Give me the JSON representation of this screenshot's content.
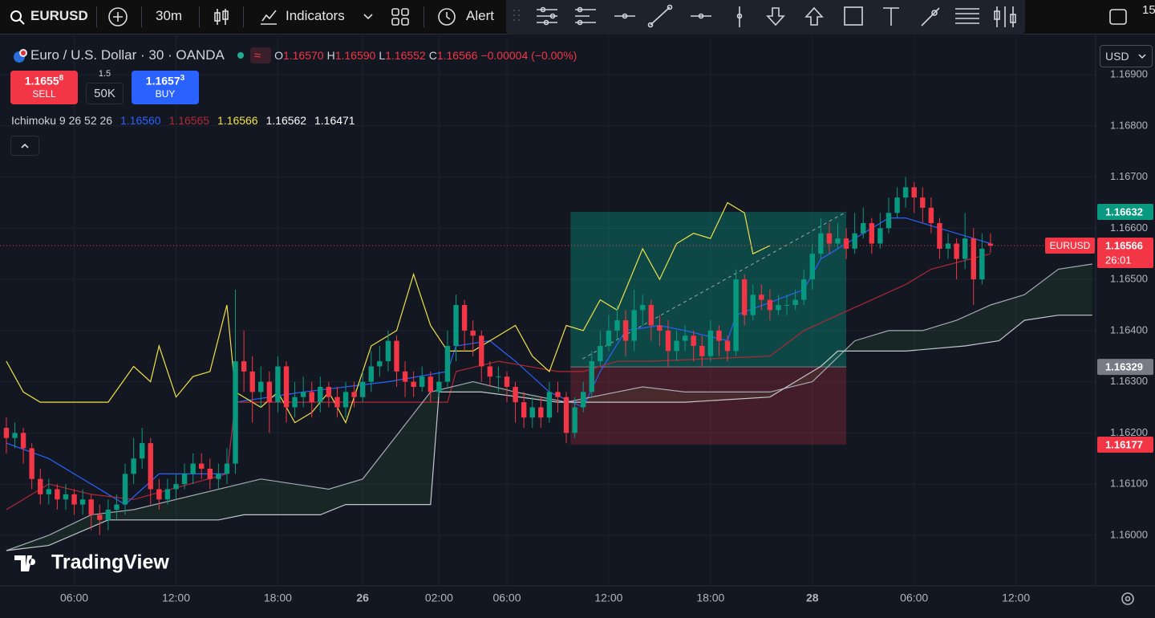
{
  "toolbar": {
    "symbol": "EURUSD",
    "interval": "30m",
    "indicators": "Indicators",
    "alert": "Alert",
    "clock": "15"
  },
  "legend": {
    "title": "Euro / U.S. Dollar · 30 · OANDA",
    "approx": "≈",
    "ohlc": [
      {
        "k": "O",
        "v": "1.16570"
      },
      {
        "k": "H",
        "v": "1.16590"
      },
      {
        "k": "L",
        "v": "1.16552"
      },
      {
        "k": "C",
        "v": "1.16566"
      }
    ],
    "change": "−0.00004 (−0.00%)"
  },
  "trade": {
    "sell": {
      "price": "1.1655",
      "pip": "8",
      "label": "SELL"
    },
    "spread": "1.5",
    "qty": "50K",
    "buy": {
      "price": "1.1657",
      "pip": "3",
      "label": "BUY"
    }
  },
  "indicator": {
    "name": "Ichimoku 9 26 52 26",
    "values": [
      "1.16560",
      "1.16565",
      "1.16566",
      "1.16562",
      "1.16471"
    ]
  },
  "currency": "USD",
  "brand": "TradingView",
  "chart_data": {
    "type": "candlestick",
    "xlim": [
      -0.75,
      128.3
    ],
    "ylim": [
      1.15901,
      1.16977
    ],
    "grid": true,
    "up_color": "#089981",
    "down_color": "#f23645",
    "xticks": [
      {
        "value": 8,
        "label": "06:00"
      },
      {
        "value": 20,
        "label": "12:00"
      },
      {
        "value": 32,
        "label": "18:00"
      },
      {
        "value": 42,
        "label": "26"
      },
      {
        "value": 51,
        "label": "02:00"
      },
      {
        "value": 59,
        "label": "06:00"
      },
      {
        "value": 71,
        "label": "12:00"
      },
      {
        "value": 83,
        "label": "18:00"
      },
      {
        "value": 95,
        "label": "28"
      },
      {
        "value": 107,
        "label": "06:00"
      },
      {
        "value": 119,
        "label": "12:00"
      }
    ],
    "yticks": [
      {
        "value": 1.169,
        "label": "1.16900"
      },
      {
        "value": 1.168,
        "label": "1.16800"
      },
      {
        "value": 1.167,
        "label": "1.16700"
      },
      {
        "value": 1.166,
        "label": "1.16600"
      },
      {
        "value": 1.165,
        "label": "1.16500"
      },
      {
        "value": 1.164,
        "label": "1.16400"
      },
      {
        "value": 1.163,
        "label": "1.16300"
      },
      {
        "value": 1.162,
        "label": "1.16200"
      },
      {
        "value": 1.161,
        "label": "1.16100"
      },
      {
        "value": 1.16,
        "label": "1.16000"
      }
    ],
    "candles": [
      [
        1.1621,
        1.1623,
        1.1616,
        1.1619
      ],
      [
        1.1619,
        1.1622,
        1.1617,
        1.162
      ],
      [
        1.162,
        1.1621,
        1.1614,
        1.1617
      ],
      [
        1.1617,
        1.1618,
        1.1609,
        1.1611
      ],
      [
        1.1611,
        1.1613,
        1.1606,
        1.1608
      ],
      [
        1.1608,
        1.1611,
        1.1606,
        1.1609
      ],
      [
        1.1609,
        1.161,
        1.1605,
        1.1607
      ],
      [
        1.1607,
        1.161,
        1.1605,
        1.1608
      ],
      [
        1.1608,
        1.1609,
        1.1604,
        1.1606
      ],
      [
        1.1606,
        1.1609,
        1.1604,
        1.1607
      ],
      [
        1.1607,
        1.1608,
        1.1601,
        1.1604
      ],
      [
        1.1604,
        1.1606,
        1.16,
        1.1603
      ],
      [
        1.1603,
        1.1607,
        1.1601,
        1.1605
      ],
      [
        1.1605,
        1.1608,
        1.1603,
        1.1606
      ],
      [
        1.1606,
        1.1614,
        1.1604,
        1.1612
      ],
      [
        1.1612,
        1.1619,
        1.161,
        1.1615
      ],
      [
        1.1615,
        1.1621,
        1.1613,
        1.1618
      ],
      [
        1.1618,
        1.1619,
        1.1606,
        1.1609
      ],
      [
        1.1609,
        1.1611,
        1.1605,
        1.1607
      ],
      [
        1.1607,
        1.1611,
        1.1606,
        1.1609
      ],
      [
        1.1609,
        1.1612,
        1.1607,
        1.161
      ],
      [
        1.161,
        1.1614,
        1.1609,
        1.1612
      ],
      [
        1.1612,
        1.1616,
        1.161,
        1.1614
      ],
      [
        1.1614,
        1.1616,
        1.1611,
        1.1613
      ],
      [
        1.1613,
        1.1615,
        1.1609,
        1.1611
      ],
      [
        1.1611,
        1.1614,
        1.1609,
        1.1612
      ],
      [
        1.1612,
        1.1617,
        1.161,
        1.1614
      ],
      [
        1.1614,
        1.1648,
        1.1612,
        1.1634
      ],
      [
        1.1634,
        1.164,
        1.1628,
        1.1632
      ],
      [
        1.1632,
        1.1635,
        1.1622,
        1.1628
      ],
      [
        1.1628,
        1.1633,
        1.1625,
        1.163
      ],
      [
        1.163,
        1.1632,
        1.162,
        1.1626
      ],
      [
        1.1626,
        1.1635,
        1.1624,
        1.1633
      ],
      [
        1.1633,
        1.1634,
        1.1622,
        1.1625
      ],
      [
        1.1625,
        1.163,
        1.1623,
        1.1627
      ],
      [
        1.1627,
        1.1631,
        1.1625,
        1.1628
      ],
      [
        1.1628,
        1.163,
        1.1623,
        1.1626
      ],
      [
        1.1626,
        1.1631,
        1.1624,
        1.1629
      ],
      [
        1.1629,
        1.163,
        1.1625,
        1.1627
      ],
      [
        1.1627,
        1.1629,
        1.1623,
        1.1625
      ],
      [
        1.1625,
        1.163,
        1.1623,
        1.1628
      ],
      [
        1.1628,
        1.163,
        1.1625,
        1.1627
      ],
      [
        1.1627,
        1.1632,
        1.1626,
        1.163
      ],
      [
        1.163,
        1.1636,
        1.1628,
        1.1633
      ],
      [
        1.1633,
        1.1637,
        1.1631,
        1.1634
      ],
      [
        1.1634,
        1.164,
        1.1632,
        1.1638
      ],
      [
        1.1638,
        1.1639,
        1.1629,
        1.1632
      ],
      [
        1.1632,
        1.1634,
        1.1627,
        1.163
      ],
      [
        1.163,
        1.1632,
        1.1627,
        1.1629
      ],
      [
        1.1629,
        1.1633,
        1.1628,
        1.1631
      ],
      [
        1.1631,
        1.1632,
        1.1626,
        1.1628
      ],
      [
        1.1628,
        1.1632,
        1.1627,
        1.163
      ],
      [
        1.163,
        1.164,
        1.1629,
        1.1637
      ],
      [
        1.1637,
        1.1647,
        1.1634,
        1.1645
      ],
      [
        1.1645,
        1.1646,
        1.1636,
        1.164
      ],
      [
        1.164,
        1.1642,
        1.1635,
        1.1639
      ],
      [
        1.1639,
        1.164,
        1.163,
        1.1633
      ],
      [
        1.1633,
        1.1634,
        1.1629,
        1.1631
      ],
      [
        1.1631,
        1.1633,
        1.1628,
        1.1631
      ],
      [
        1.1631,
        1.1632,
        1.1626,
        1.1629
      ],
      [
        1.1629,
        1.163,
        1.1622,
        1.1626
      ],
      [
        1.1626,
        1.1628,
        1.1621,
        1.1623
      ],
      [
        1.1623,
        1.1627,
        1.1621,
        1.1625
      ],
      [
        1.1625,
        1.1627,
        1.1621,
        1.1623
      ],
      [
        1.1623,
        1.163,
        1.1622,
        1.1628
      ],
      [
        1.1628,
        1.163,
        1.1624,
        1.1627
      ],
      [
        1.1627,
        1.1628,
        1.1618,
        1.162
      ],
      [
        1.162,
        1.1627,
        1.1619,
        1.1625
      ],
      [
        1.1625,
        1.163,
        1.1624,
        1.1628
      ],
      [
        1.1628,
        1.1636,
        1.1627,
        1.1634
      ],
      [
        1.1634,
        1.164,
        1.1633,
        1.1637
      ],
      [
        1.1637,
        1.1643,
        1.1636,
        1.164
      ],
      [
        1.164,
        1.1645,
        1.1638,
        1.1642
      ],
      [
        1.1642,
        1.1644,
        1.1635,
        1.1638
      ],
      [
        1.1638,
        1.1648,
        1.1636,
        1.1644
      ],
      [
        1.1644,
        1.1647,
        1.1641,
        1.1645
      ],
      [
        1.1645,
        1.1646,
        1.1638,
        1.1641
      ],
      [
        1.1641,
        1.1643,
        1.1637,
        1.164
      ],
      [
        1.164,
        1.1642,
        1.1633,
        1.1636
      ],
      [
        1.1636,
        1.164,
        1.1634,
        1.1638
      ],
      [
        1.1638,
        1.1641,
        1.1636,
        1.1639
      ],
      [
        1.1639,
        1.164,
        1.1634,
        1.1637
      ],
      [
        1.1637,
        1.1639,
        1.1633,
        1.1635
      ],
      [
        1.1635,
        1.1642,
        1.1634,
        1.164
      ],
      [
        1.164,
        1.1641,
        1.1635,
        1.1638
      ],
      [
        1.1638,
        1.1639,
        1.1634,
        1.1636
      ],
      [
        1.1636,
        1.1652,
        1.1635,
        1.165
      ],
      [
        1.165,
        1.1651,
        1.1641,
        1.1643
      ],
      [
        1.1643,
        1.1649,
        1.1642,
        1.1647
      ],
      [
        1.1647,
        1.1649,
        1.1644,
        1.1646
      ],
      [
        1.1646,
        1.1648,
        1.1642,
        1.1644
      ],
      [
        1.1644,
        1.1647,
        1.1643,
        1.1645
      ],
      [
        1.1645,
        1.1647,
        1.1643,
        1.1645
      ],
      [
        1.1645,
        1.1648,
        1.1644,
        1.1646
      ],
      [
        1.1646,
        1.1652,
        1.1645,
        1.165
      ],
      [
        1.165,
        1.1657,
        1.1648,
        1.1655
      ],
      [
        1.1655,
        1.1662,
        1.1654,
        1.1659
      ],
      [
        1.1659,
        1.1661,
        1.1655,
        1.1657
      ],
      [
        1.1657,
        1.1661,
        1.1656,
        1.1658
      ],
      [
        1.1658,
        1.166,
        1.1654,
        1.1656
      ],
      [
        1.1656,
        1.1663,
        1.1655,
        1.1659
      ],
      [
        1.1659,
        1.1664,
        1.1658,
        1.1661
      ],
      [
        1.1661,
        1.1662,
        1.1655,
        1.1657
      ],
      [
        1.1657,
        1.1663,
        1.1656,
        1.166
      ],
      [
        1.166,
        1.1666,
        1.1659,
        1.1663
      ],
      [
        1.1663,
        1.1668,
        1.1662,
        1.1666
      ],
      [
        1.1666,
        1.167,
        1.1664,
        1.1668
      ],
      [
        1.1668,
        1.1669,
        1.1663,
        1.1666
      ],
      [
        1.1666,
        1.1668,
        1.1661,
        1.1664
      ],
      [
        1.1664,
        1.1666,
        1.1659,
        1.1661
      ],
      [
        1.1661,
        1.1662,
        1.1654,
        1.1656
      ],
      [
        1.1656,
        1.1659,
        1.1654,
        1.1657
      ],
      [
        1.1657,
        1.1658,
        1.165,
        1.1654
      ],
      [
        1.1654,
        1.1663,
        1.1652,
        1.1658
      ],
      [
        1.1658,
        1.166,
        1.1645,
        1.165
      ],
      [
        1.165,
        1.1659,
        1.1649,
        1.1656
      ],
      [
        1.1657,
        1.1659,
        1.16552,
        1.16566
      ]
    ],
    "lines": [
      {
        "color": "#2962ff",
        "x": [
          0,
          5,
          10,
          14,
          18,
          26,
          27,
          35,
          45,
          52,
          53,
          57,
          60,
          64,
          68,
          70,
          73,
          77,
          80,
          85,
          86,
          94,
          96,
          100,
          104,
          106,
          110,
          114,
          116
        ],
        "values": [
          1.1618,
          1.1615,
          1.161,
          1.1606,
          1.1612,
          1.1612,
          1.1626,
          1.1628,
          1.163,
          1.1632,
          1.1637,
          1.1638,
          1.1634,
          1.1628,
          1.1625,
          1.1632,
          1.164,
          1.1641,
          1.164,
          1.1638,
          1.1643,
          1.1648,
          1.1654,
          1.1658,
          1.1662,
          1.1662,
          1.166,
          1.1658,
          1.1657
        ]
      },
      {
        "color": "#b22833",
        "x": [
          0,
          5,
          10,
          15,
          26,
          27,
          52,
          53,
          58,
          65,
          68,
          72,
          76,
          90,
          94,
          98,
          106,
          109,
          116
        ],
        "values": [
          1.1605,
          1.161,
          1.1608,
          1.1607,
          1.1612,
          1.1626,
          1.1626,
          1.1632,
          1.1634,
          1.1632,
          1.1632,
          1.1634,
          1.1634,
          1.1635,
          1.164,
          1.1643,
          1.1649,
          1.1652,
          1.1655
        ]
      },
      {
        "color": "#f0e04a",
        "x": [
          0,
          2,
          4,
          8,
          12,
          15,
          17,
          18,
          20,
          22,
          24,
          26,
          27,
          30,
          32,
          34,
          36,
          38,
          40,
          43,
          46,
          48,
          50,
          52,
          55,
          60,
          62,
          64,
          66,
          68,
          70,
          72,
          75,
          77,
          79,
          81,
          83,
          85,
          87,
          88,
          90
        ],
        "values": [
          1.1634,
          1.1628,
          1.1626,
          1.1626,
          1.1626,
          1.1633,
          1.163,
          1.1637,
          1.1627,
          1.1631,
          1.1632,
          1.1645,
          1.1628,
          1.1625,
          1.1628,
          1.1622,
          1.1624,
          1.1628,
          1.1622,
          1.1637,
          1.164,
          1.1651,
          1.1641,
          1.1636,
          1.1636,
          1.1641,
          1.1635,
          1.1632,
          1.1641,
          1.164,
          1.1646,
          1.1644,
          1.1656,
          1.165,
          1.1657,
          1.1659,
          1.1658,
          1.1665,
          1.1663,
          1.1655,
          1.16566
        ]
      },
      {
        "color": "#a5a9b3",
        "x": [
          0,
          5,
          10,
          15,
          30,
          38,
          42,
          50,
          55,
          60,
          66,
          75,
          80,
          90,
          95,
          100,
          104,
          108,
          112,
          116,
          120,
          124,
          128
        ],
        "values": [
          1.1597,
          1.16,
          1.1604,
          1.1605,
          1.1611,
          1.1609,
          1.1611,
          1.1628,
          1.163,
          1.1628,
          1.1626,
          1.1629,
          1.1628,
          1.1628,
          1.163,
          1.1638,
          1.164,
          1.164,
          1.1642,
          1.1645,
          1.1647,
          1.1652,
          1.1653
        ]
      },
      {
        "color": "#c4c7ce",
        "x": [
          0,
          5,
          12,
          25,
          28,
          37,
          40,
          50,
          51,
          56,
          65,
          80,
          90,
          96,
          98,
          106,
          113,
          117,
          120,
          124,
          128
        ],
        "values": [
          1.1597,
          1.1598,
          1.1603,
          1.1603,
          1.1604,
          1.1604,
          1.1606,
          1.1606,
          1.1628,
          1.1628,
          1.1626,
          1.1626,
          1.1627,
          1.1633,
          1.1636,
          1.1636,
          1.1637,
          1.1638,
          1.1642,
          1.1643,
          1.1643
        ]
      }
    ],
    "cloud": [
      3,
      4
    ],
    "position": {
      "start": 66.5,
      "end": 99,
      "entry": 1.16329,
      "target": 1.16632,
      "stop": 1.16177
    },
    "price": {
      "symbol": "EURUSD",
      "current": 1.16566,
      "countdown": "26:01"
    }
  }
}
